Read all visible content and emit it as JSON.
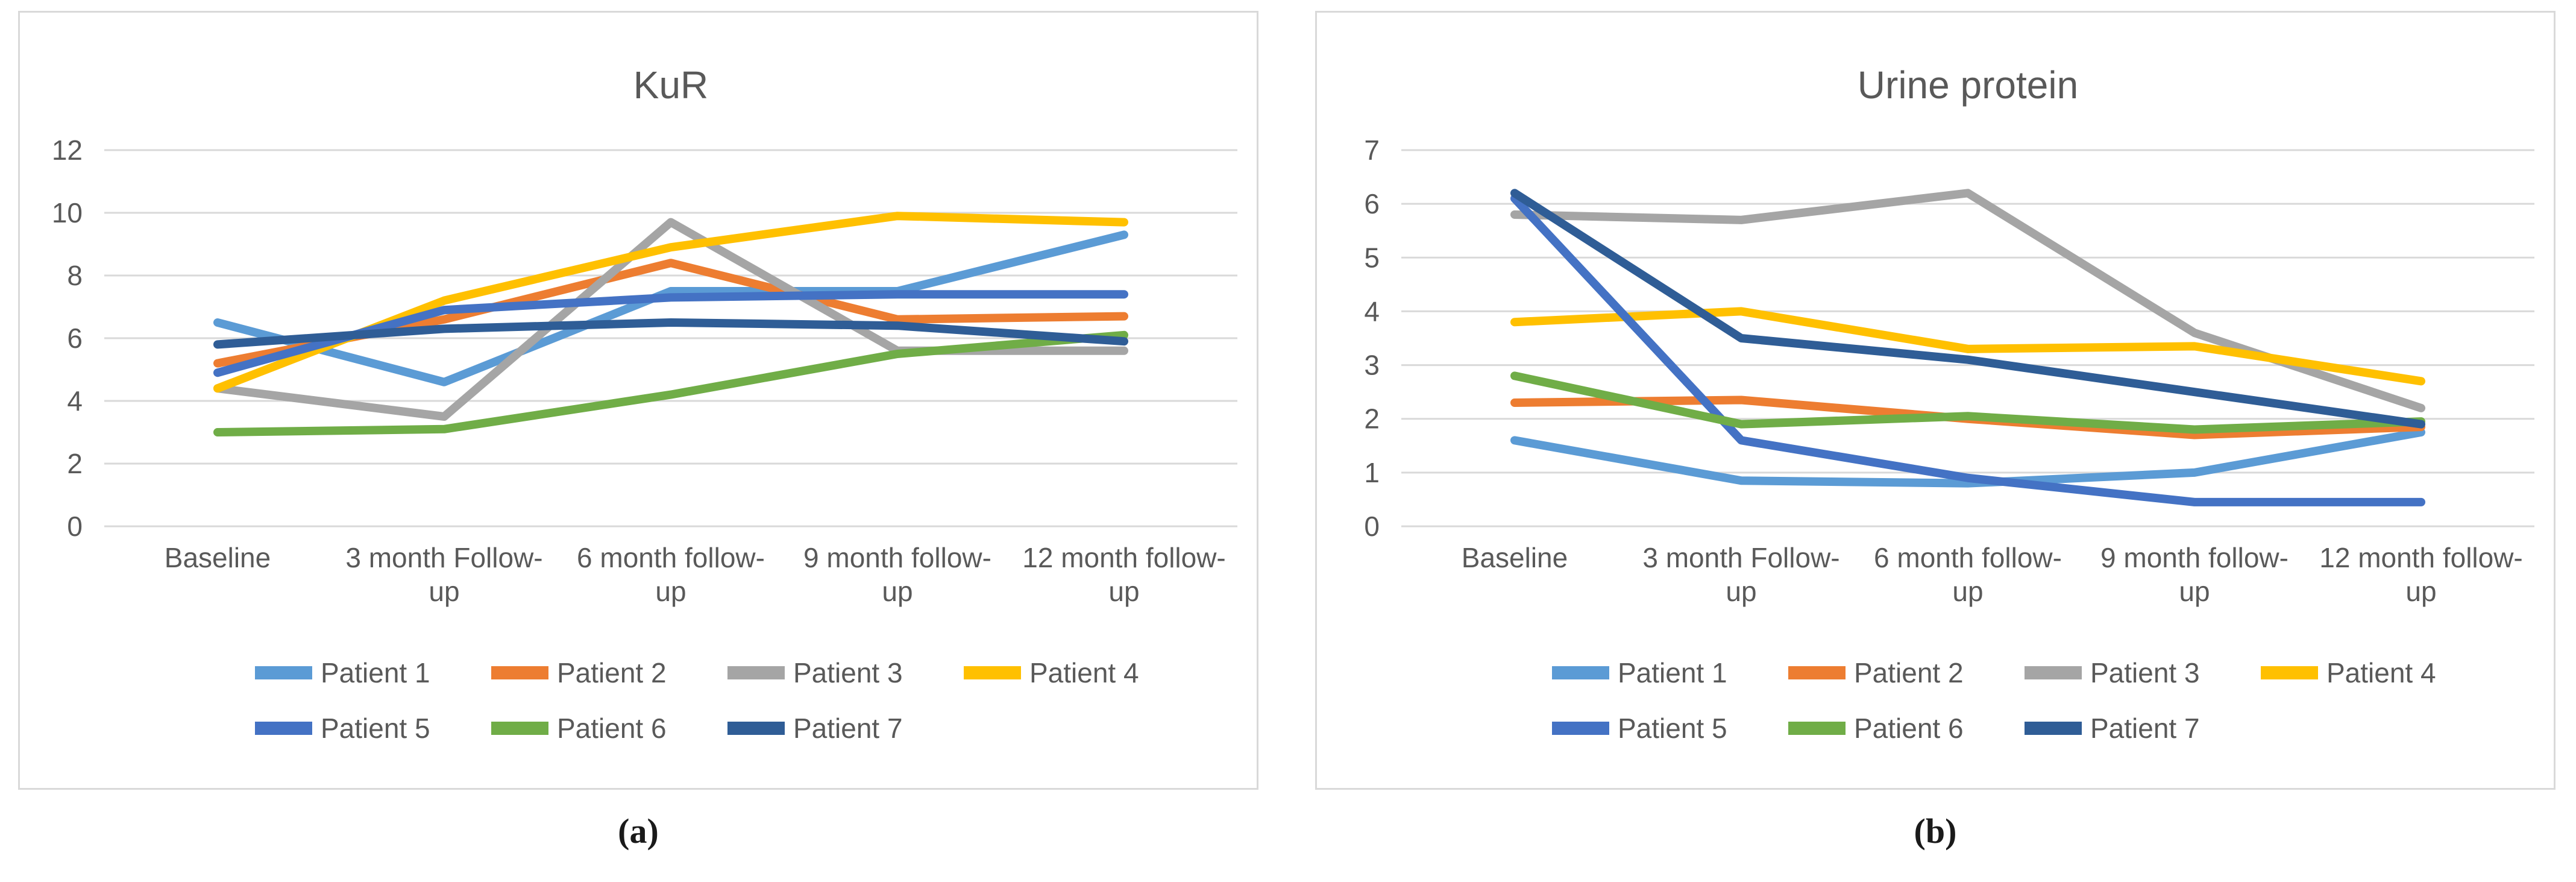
{
  "captions": {
    "a": "(a)",
    "b": "(b)"
  },
  "chart_data": [
    {
      "type": "line",
      "title": "KuR",
      "categories": [
        "Baseline",
        "3 month Follow-up",
        "6 month follow-up",
        "9 month follow-up",
        "12 month follow-up"
      ],
      "category_label_lines": [
        [
          "Baseline"
        ],
        [
          "3 month Follow-",
          "up"
        ],
        [
          "6 month follow-",
          "up"
        ],
        [
          "9 month follow-",
          "up"
        ],
        [
          "12 month follow-",
          "up"
        ]
      ],
      "ylim": [
        0,
        12
      ],
      "yticks": [
        0,
        2,
        4,
        6,
        8,
        10,
        12
      ],
      "grid": true,
      "legend_position": "bottom",
      "grid_color": "#D9D9D9",
      "text_color": "#595959",
      "series": [
        {
          "name": "Patient 1",
          "color": "#5B9BD5",
          "values": [
            6.5,
            4.6,
            7.5,
            7.5,
            9.3
          ]
        },
        {
          "name": "Patient 2",
          "color": "#ED7D31",
          "values": [
            5.2,
            6.6,
            8.4,
            6.6,
            6.7
          ]
        },
        {
          "name": "Patient 3",
          "color": "#A5A5A5",
          "values": [
            4.4,
            3.5,
            9.7,
            5.6,
            5.6
          ]
        },
        {
          "name": "Patient 4",
          "color": "#FFC000",
          "values": [
            4.4,
            7.2,
            8.9,
            9.9,
            9.7
          ]
        },
        {
          "name": "Patient 5",
          "color": "#4472C4",
          "values": [
            4.9,
            6.9,
            7.3,
            7.4,
            7.4
          ]
        },
        {
          "name": "Patient 6",
          "color": "#70AD47",
          "values": [
            3.0,
            3.1,
            4.2,
            5.5,
            6.1
          ]
        },
        {
          "name": "Patient 7",
          "color": "#2F5D96",
          "values": [
            5.8,
            6.3,
            6.5,
            6.4,
            5.9
          ]
        }
      ]
    },
    {
      "type": "line",
      "title": "Urine protein",
      "categories": [
        "Baseline",
        "3 month Follow-up",
        "6 month follow-up",
        "9 month follow-up",
        "12 month follow-up"
      ],
      "category_label_lines": [
        [
          "Baseline"
        ],
        [
          "3 month Follow-",
          "up"
        ],
        [
          "6 month follow-",
          "up"
        ],
        [
          "9 month follow-",
          "up"
        ],
        [
          "12 month follow-",
          "up"
        ]
      ],
      "ylim": [
        0,
        7
      ],
      "yticks": [
        0,
        1,
        2,
        3,
        4,
        5,
        6,
        7
      ],
      "grid": true,
      "legend_position": "bottom",
      "grid_color": "#D9D9D9",
      "text_color": "#595959",
      "series": [
        {
          "name": "Patient 1",
          "color": "#5B9BD5",
          "values": [
            1.6,
            0.85,
            0.8,
            1.0,
            1.75
          ]
        },
        {
          "name": "Patient 2",
          "color": "#ED7D31",
          "values": [
            2.3,
            2.35,
            2.0,
            1.7,
            1.85
          ]
        },
        {
          "name": "Patient 3",
          "color": "#A5A5A5",
          "values": [
            5.8,
            5.7,
            6.2,
            3.6,
            2.2
          ]
        },
        {
          "name": "Patient 4",
          "color": "#FFC000",
          "values": [
            3.8,
            4.0,
            3.3,
            3.35,
            2.7
          ]
        },
        {
          "name": "Patient 5",
          "color": "#4472C4",
          "values": [
            6.1,
            1.6,
            0.9,
            0.45,
            0.45
          ]
        },
        {
          "name": "Patient 6",
          "color": "#70AD47",
          "values": [
            2.8,
            1.9,
            2.05,
            1.8,
            1.95
          ]
        },
        {
          "name": "Patient 7",
          "color": "#2F5D96",
          "values": [
            6.2,
            3.5,
            3.1,
            2.5,
            1.9
          ]
        }
      ]
    }
  ]
}
